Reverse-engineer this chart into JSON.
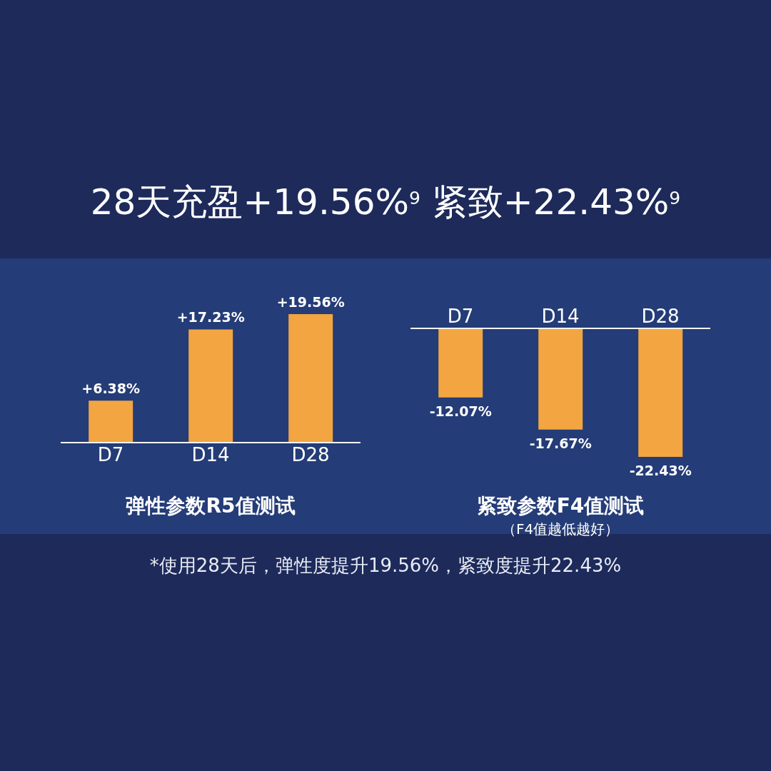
{
  "chart_data": [
    {
      "type": "other",
      "title": "28天充盈+19.56%$^{9}$ 紧致+22.43%$^{9}$",
      "annotations": [
        "*使用28天后，弹性度提升19.56%，紧致度提升22.43%"
      ]
    },
    {
      "type": "bar",
      "xlabel": "弹性参数R5值测试",
      "categories": [
        "D7",
        "D14",
        "D28"
      ],
      "values": [
        6.38,
        17.23,
        19.56
      ],
      "value_labels": [
        "+6.38%",
        "+17.23%",
        "+19.56%"
      ],
      "color": "#f2a541"
    },
    {
      "type": "bar",
      "xlabel": "紧致参数F4值测试",
      "annotations": [
        "（F4值越低越好）"
      ],
      "categories": [
        "D7",
        "D14",
        "D28"
      ],
      "values": [
        -12.07,
        -17.67,
        -22.43
      ],
      "value_labels": [
        "-12.07%",
        "-17.67%",
        "-22.43%"
      ],
      "color": "#f2a541"
    }
  ]
}
